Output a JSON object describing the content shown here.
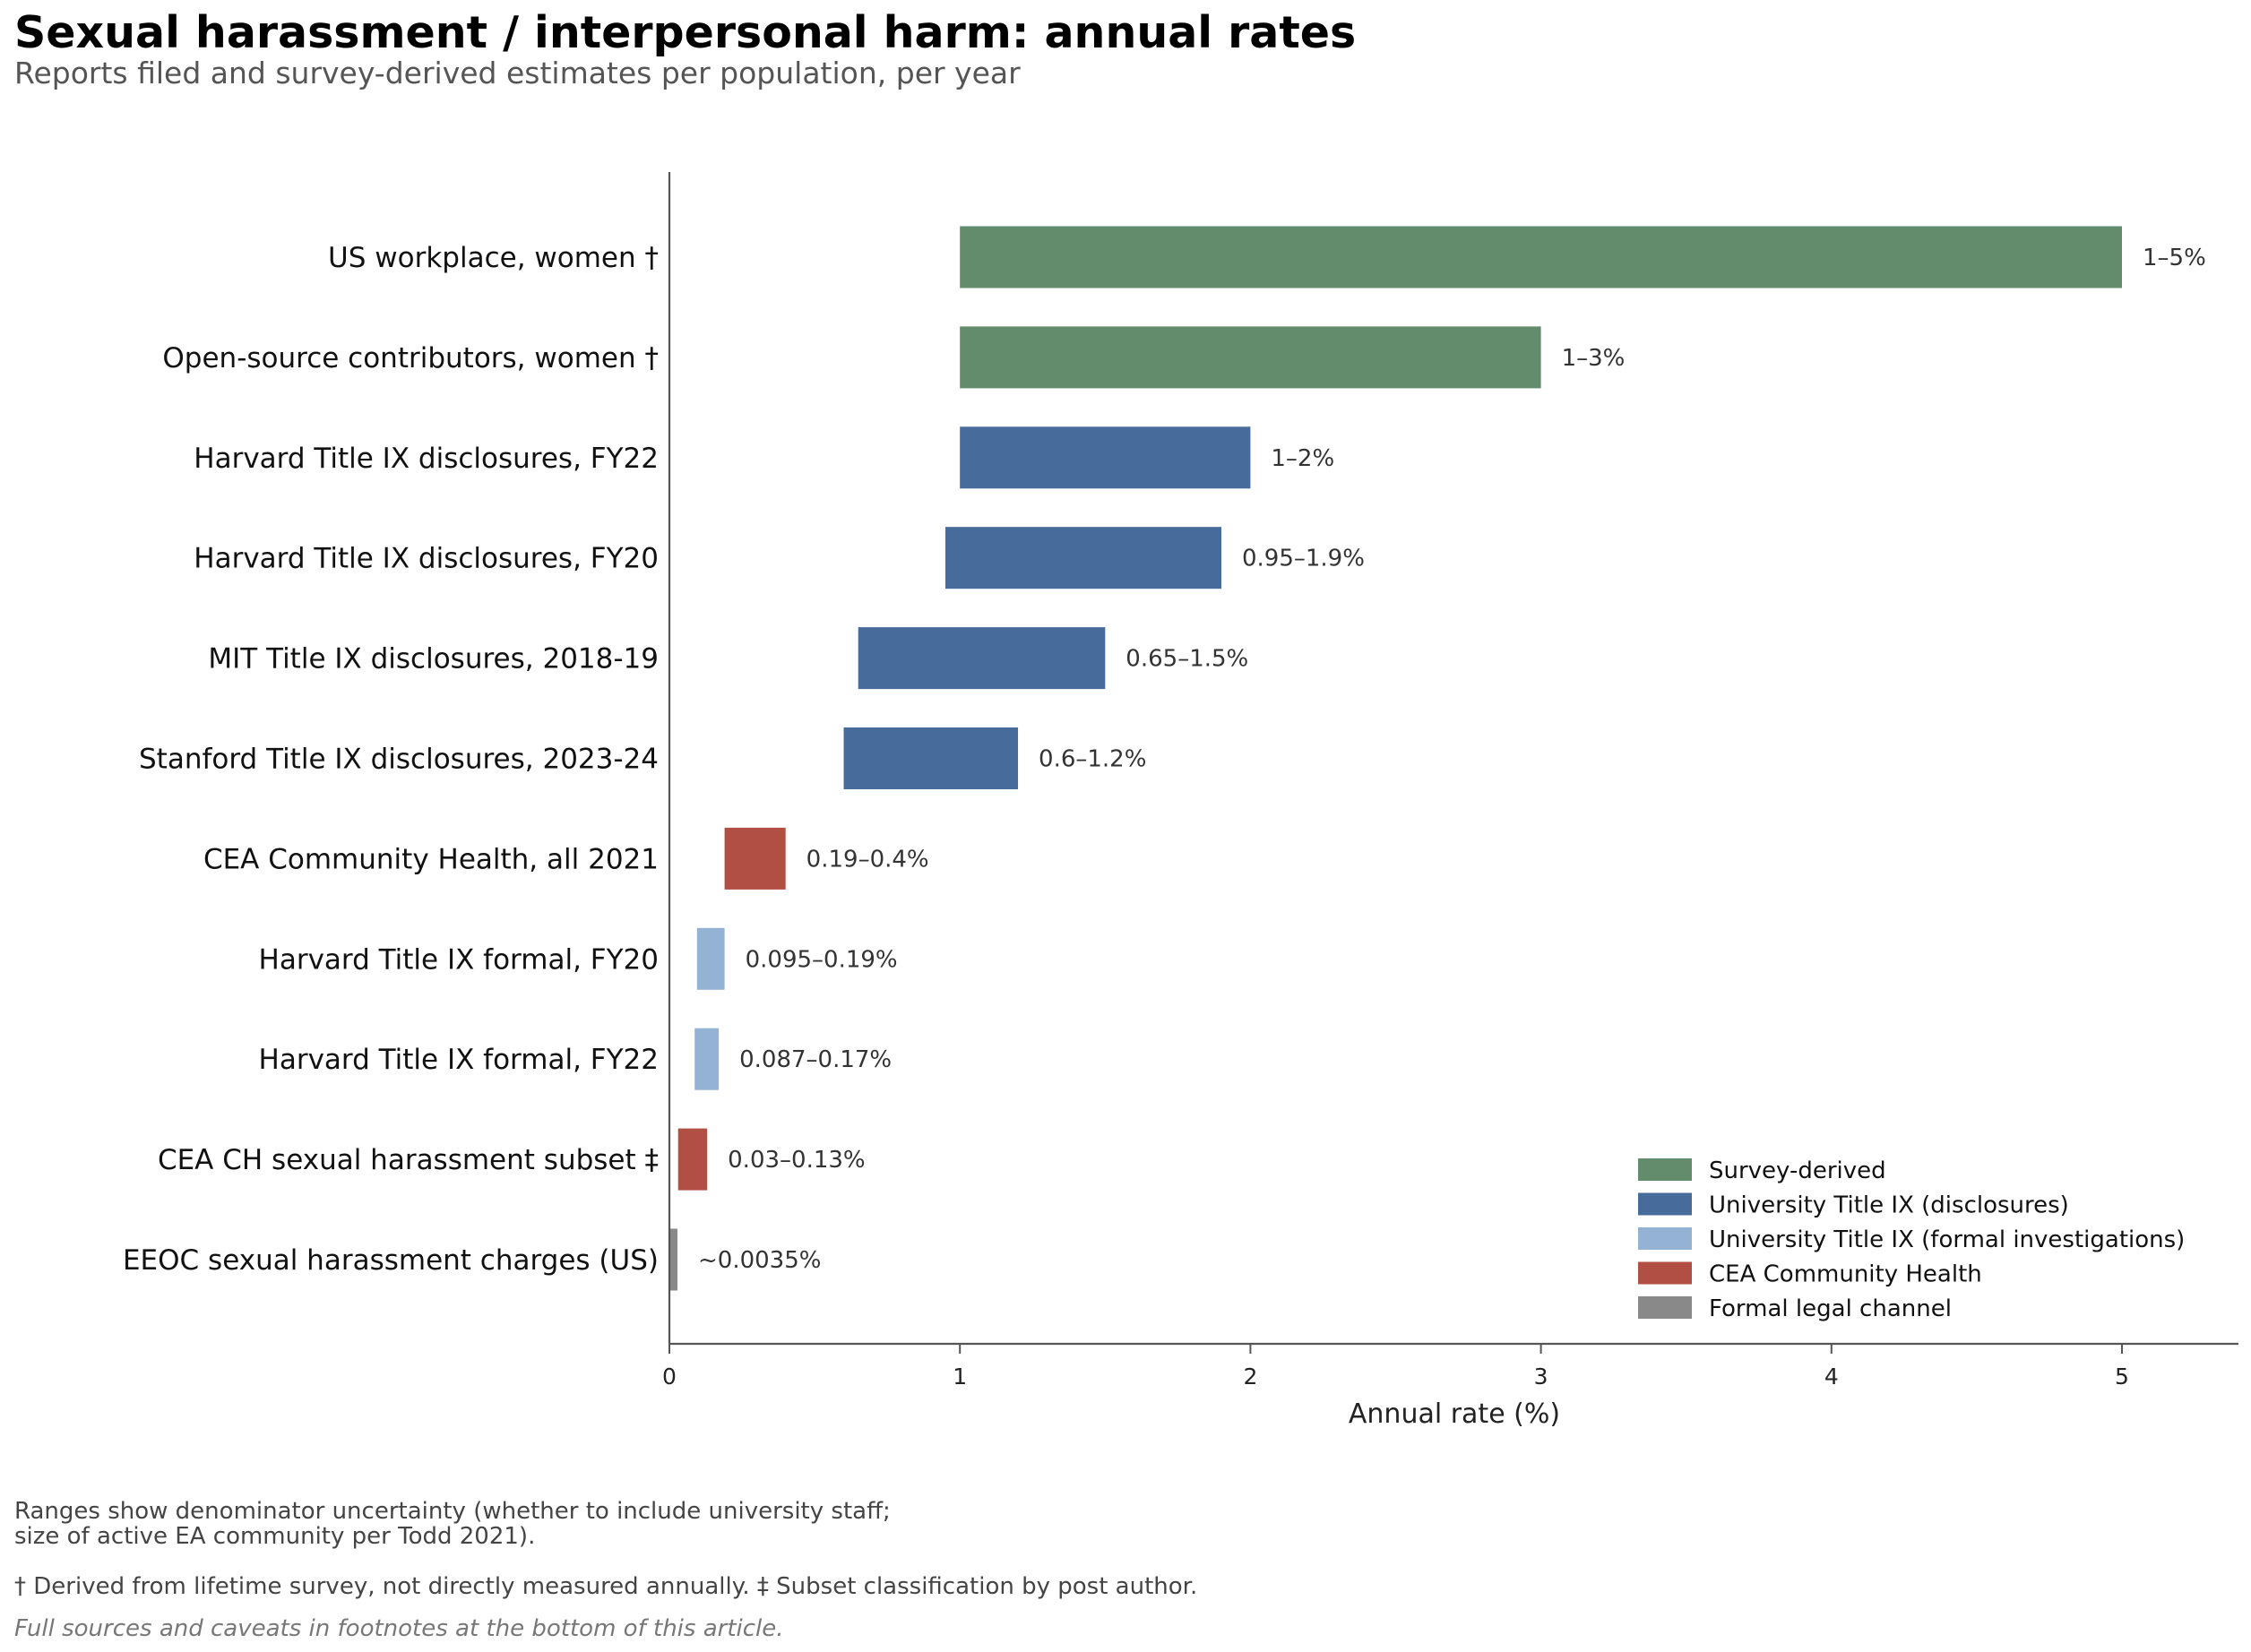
{
  "chart_data": {
    "type": "bar",
    "orientation": "horizontal",
    "title": "Sexual harassment / interpersonal harm: annual rates",
    "subtitle": "Reports filed and survey-derived estimates per population, per year",
    "xlabel": "Annual rate (%)",
    "ylabel": "",
    "xlim": [
      0,
      5.4
    ],
    "xticks": [
      0,
      1,
      2,
      3,
      4,
      5
    ],
    "grid": false,
    "legend_position": "lower-right",
    "legend": [
      {
        "key": "survey",
        "label": "Survey-derived",
        "color": "#628C6B"
      },
      {
        "key": "disclosures",
        "label": "University Title IX (disclosures)",
        "color": "#476C9B"
      },
      {
        "key": "formal",
        "label": "University Title IX (formal investigations)",
        "color": "#94B2D4"
      },
      {
        "key": "cea",
        "label": "CEA Community Health",
        "color": "#B24F44"
      },
      {
        "key": "legal",
        "label": "Formal legal channel",
        "color": "#898989"
      }
    ],
    "bars": [
      {
        "category": "US workplace, women †",
        "low": 1,
        "high": 5,
        "label": "1–5%",
        "group": "survey"
      },
      {
        "category": "Open-source contributors, women †",
        "low": 1,
        "high": 3,
        "label": "1–3%",
        "group": "survey"
      },
      {
        "category": "Harvard Title IX disclosures, FY22",
        "low": 1,
        "high": 2,
        "label": "1–2%",
        "group": "disclosures"
      },
      {
        "category": "Harvard Title IX disclosures, FY20",
        "low": 0.95,
        "high": 1.9,
        "label": "0.95–1.9%",
        "group": "disclosures"
      },
      {
        "category": "MIT Title IX disclosures, 2018-19",
        "low": 0.65,
        "high": 1.5,
        "label": "0.65–1.5%",
        "group": "disclosures"
      },
      {
        "category": "Stanford Title IX disclosures, 2023-24",
        "low": 0.6,
        "high": 1.2,
        "label": "0.6–1.2%",
        "group": "disclosures"
      },
      {
        "category": "CEA Community Health, all 2021",
        "low": 0.19,
        "high": 0.4,
        "label": "0.19–0.4%",
        "group": "cea"
      },
      {
        "category": "Harvard Title IX formal, FY20",
        "low": 0.095,
        "high": 0.19,
        "label": "0.095–0.19%",
        "group": "formal"
      },
      {
        "category": "Harvard Title IX formal, FY22",
        "low": 0.087,
        "high": 0.17,
        "label": "0.087–0.17%",
        "group": "formal"
      },
      {
        "category": "CEA CH sexual harassment subset ‡",
        "low": 0.03,
        "high": 0.13,
        "label": "0.03–0.13%",
        "group": "cea"
      },
      {
        "category": "EEOC sexual harassment charges (US)",
        "low": 0,
        "high": 0.0035,
        "label": "~0.0035%",
        "group": "legal"
      }
    ]
  },
  "notes": {
    "ranges_line1": "Ranges show denominator uncertainty (whether to include university staff;",
    "ranges_line2": "size of active EA community per Todd 2021).",
    "daggers": "† Derived from lifetime survey, not directly measured annually.   ‡ Subset classification by post author.",
    "sources": "Full sources and caveats in footnotes at the bottom of this article."
  }
}
